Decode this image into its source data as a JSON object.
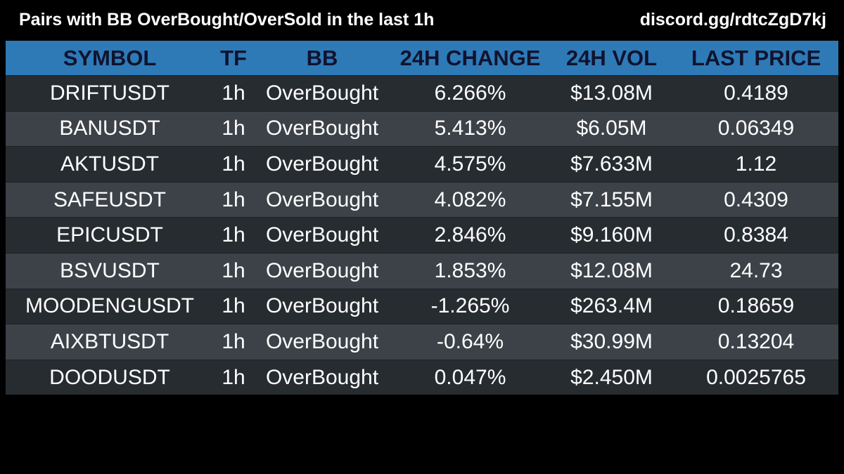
{
  "header": {
    "title": "Pairs with BB OverBought/OverSold in the last 1h",
    "link": "discord.gg/rdtcZgD7kj"
  },
  "colors": {
    "background": "#000000",
    "header_row": "#2e7ab7",
    "header_text": "#10132e",
    "row_dark": "#272c31",
    "row_light": "#3c4248",
    "cell_text": "#ffffff"
  },
  "chart_data": {
    "type": "table",
    "columns": [
      "SYMBOL",
      "TF",
      "BB",
      "24H CHANGE",
      "24H VOL",
      "LAST PRICE"
    ],
    "rows": [
      [
        "DRIFTUSDT",
        "1h",
        "OverBought",
        "6.266%",
        "$13.08M",
        "0.4189"
      ],
      [
        "BANUSDT",
        "1h",
        "OverBought",
        "5.413%",
        "$6.05M",
        "0.06349"
      ],
      [
        "AKTUSDT",
        "1h",
        "OverBought",
        "4.575%",
        "$7.633M",
        "1.12"
      ],
      [
        "SAFEUSDT",
        "1h",
        "OverBought",
        "4.082%",
        "$7.155M",
        "0.4309"
      ],
      [
        "EPICUSDT",
        "1h",
        "OverBought",
        "2.846%",
        "$9.160M",
        "0.8384"
      ],
      [
        "BSVUSDT",
        "1h",
        "OverBought",
        "1.853%",
        "$12.08M",
        "24.73"
      ],
      [
        "MOODENGUSDT",
        "1h",
        "OverBought",
        "-1.265%",
        "$263.4M",
        "0.18659"
      ],
      [
        "AIXBTUSDT",
        "1h",
        "OverBought",
        "-0.64%",
        "$30.99M",
        "0.13204"
      ],
      [
        "DOODUSDT",
        "1h",
        "OverBought",
        "0.047%",
        "$2.450M",
        "0.0025765"
      ]
    ]
  }
}
